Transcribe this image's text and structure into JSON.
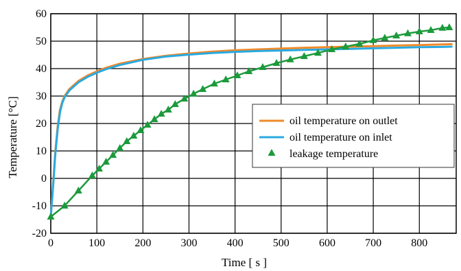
{
  "chart_data": {
    "type": "line",
    "xlabel": "Time [ s ]",
    "ylabel": "Temperature [°C]",
    "xlim": [
      0,
      880
    ],
    "ylim": [
      -20,
      60
    ],
    "xticks": [
      "0",
      "100",
      "200",
      "300",
      "400",
      "500",
      "600",
      "700",
      "800"
    ],
    "yticks": [
      "-20",
      "-10",
      "0",
      "10",
      "20",
      "30",
      "40",
      "50",
      "60"
    ],
    "grid": true,
    "legend_position": "right",
    "series": [
      {
        "name": "oil temperature on outlet",
        "color": "#f08a2a",
        "style": "line",
        "x": [
          0,
          5,
          10,
          15,
          20,
          25,
          30,
          40,
          50,
          60,
          80,
          100,
          120,
          150,
          200,
          250,
          300,
          350,
          400,
          450,
          500,
          550,
          600,
          650,
          700,
          750,
          800,
          850,
          870
        ],
        "y": [
          -14,
          -2,
          10,
          19,
          25,
          28,
          30,
          32.5,
          34,
          35.5,
          37.5,
          39,
          40.3,
          41.8,
          43.5,
          44.7,
          45.5,
          46.2,
          46.7,
          47,
          47.3,
          47.6,
          47.8,
          48,
          48.2,
          48.4,
          48.6,
          48.8,
          48.9
        ]
      },
      {
        "name": "oil temperature on inlet",
        "color": "#29a9e0",
        "style": "line",
        "x": [
          0,
          5,
          10,
          15,
          20,
          25,
          30,
          40,
          50,
          60,
          80,
          100,
          120,
          150,
          200,
          250,
          300,
          350,
          400,
          450,
          500,
          550,
          600,
          650,
          700,
          750,
          800,
          850,
          870
        ],
        "y": [
          -14,
          -3,
          9,
          18,
          24,
          27.5,
          29.5,
          32,
          33.5,
          35,
          37,
          38.5,
          39.8,
          41.3,
          43.2,
          44.4,
          45.1,
          45.7,
          46.1,
          46.4,
          46.6,
          46.8,
          47,
          47.2,
          47.4,
          47.6,
          47.8,
          47.9,
          48
        ]
      },
      {
        "name": "leakage temperature",
        "color": "#1c9a3c",
        "style": "line-marker",
        "marker": "triangle",
        "x": [
          0,
          30,
          60,
          90,
          105,
          120,
          135,
          150,
          165,
          180,
          195,
          210,
          225,
          240,
          255,
          270,
          290,
          310,
          330,
          355,
          380,
          405,
          430,
          460,
          490,
          520,
          550,
          580,
          610,
          640,
          670,
          700,
          725,
          750,
          775,
          800,
          825,
          850,
          865
        ],
        "y": [
          -14,
          -10,
          -4.5,
          1,
          3.5,
          6,
          8.5,
          11,
          13.5,
          15.5,
          17.5,
          19.5,
          21.5,
          23.5,
          25,
          27,
          29,
          30.8,
          32.5,
          34.5,
          36,
          37.5,
          39,
          40.5,
          42,
          43.3,
          44.5,
          45.7,
          47,
          48,
          49,
          50.3,
          51.2,
          52,
          52.8,
          53.5,
          54,
          54.8,
          55
        ]
      }
    ]
  }
}
